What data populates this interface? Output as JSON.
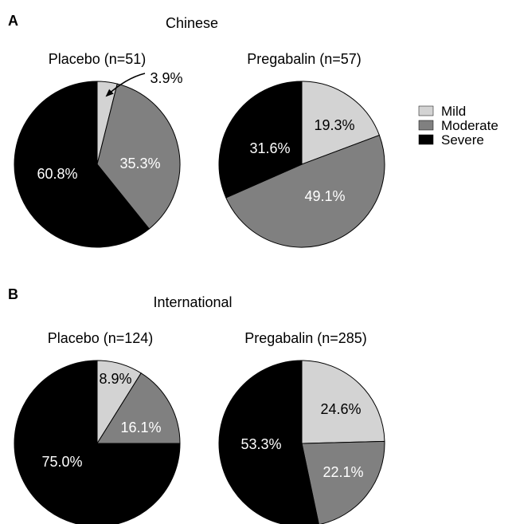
{
  "panels": [
    {
      "letter": "A",
      "title": "Chinese",
      "charts": [
        {
          "type": "pie",
          "title": "Placebo (n=51)",
          "slices": [
            {
              "category": "Mild",
              "value": 3.9,
              "label": "3.9%"
            },
            {
              "category": "Moderate",
              "value": 35.3,
              "label": "35.3%"
            },
            {
              "category": "Severe",
              "value": 60.8,
              "label": "60.8%"
            }
          ]
        },
        {
          "type": "pie",
          "title": "Pregabalin (n=57)",
          "slices": [
            {
              "category": "Mild",
              "value": 19.3,
              "label": "19.3%"
            },
            {
              "category": "Moderate",
              "value": 49.1,
              "label": "49.1%"
            },
            {
              "category": "Severe",
              "value": 31.6,
              "label": "31.6%"
            }
          ]
        }
      ]
    },
    {
      "letter": "B",
      "title": "International",
      "charts": [
        {
          "type": "pie",
          "title": "Placebo (n=124)",
          "slices": [
            {
              "category": "Mild",
              "value": 8.9,
              "label": "8.9%"
            },
            {
              "category": "Moderate",
              "value": 16.1,
              "label": "16.1%"
            },
            {
              "category": "Severe",
              "value": 75.0,
              "label": "75.0%"
            }
          ]
        },
        {
          "type": "pie",
          "title": "Pregabalin (n=285)",
          "slices": [
            {
              "category": "Mild",
              "value": 24.6,
              "label": "24.6%"
            },
            {
              "category": "Moderate",
              "value": 22.1,
              "label": "22.1%"
            },
            {
              "category": "Severe",
              "value": 53.3,
              "label": "53.3%"
            }
          ]
        }
      ]
    }
  ],
  "legend": {
    "placement": "right",
    "items": [
      {
        "label": "Mild",
        "color": "#d3d3d3"
      },
      {
        "label": "Moderate",
        "color": "#808080"
      },
      {
        "label": "Severe",
        "color": "#000000"
      }
    ]
  },
  "chart_data": [
    {
      "type": "pie",
      "title": "Placebo (n=51)",
      "categories": [
        "Mild",
        "Moderate",
        "Severe"
      ],
      "values": [
        3.9,
        35.3,
        60.8
      ]
    },
    {
      "type": "pie",
      "title": "Pregabalin (n=57)",
      "categories": [
        "Mild",
        "Moderate",
        "Severe"
      ],
      "values": [
        19.3,
        49.1,
        31.6
      ]
    },
    {
      "type": "pie",
      "title": "Placebo (n=124)",
      "categories": [
        "Mild",
        "Moderate",
        "Severe"
      ],
      "values": [
        8.9,
        16.1,
        75.0
      ]
    },
    {
      "type": "pie",
      "title": "Pregabalin (n=285)",
      "categories": [
        "Mild",
        "Moderate",
        "Severe"
      ],
      "values": [
        24.6,
        22.1,
        53.3
      ]
    }
  ]
}
